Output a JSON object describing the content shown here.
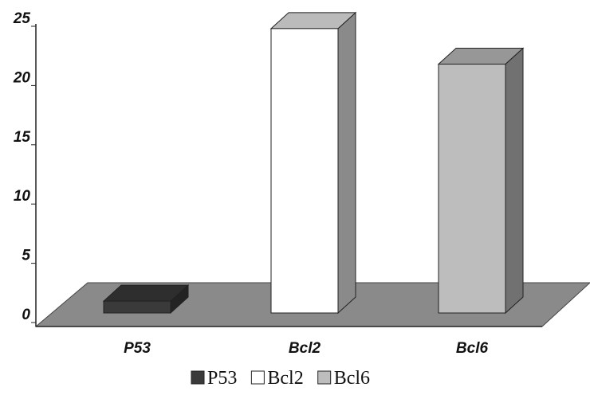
{
  "chart_data": {
    "type": "bar3d",
    "categories": [
      "P53",
      "Bcl2",
      "Bcl6"
    ],
    "series": [
      {
        "name": "P53",
        "color": "#3a3a3a",
        "values": [
          1,
          null,
          null
        ]
      },
      {
        "name": "Bcl2",
        "color": "#ffffff",
        "values": [
          null,
          24,
          null
        ]
      },
      {
        "name": "Bcl6",
        "color": "#bdbdbd",
        "values": [
          null,
          null,
          21
        ]
      }
    ],
    "ylim": [
      0,
      25
    ],
    "yticks": [
      0,
      5,
      10,
      15,
      20,
      25
    ],
    "legend": "bottom"
  }
}
